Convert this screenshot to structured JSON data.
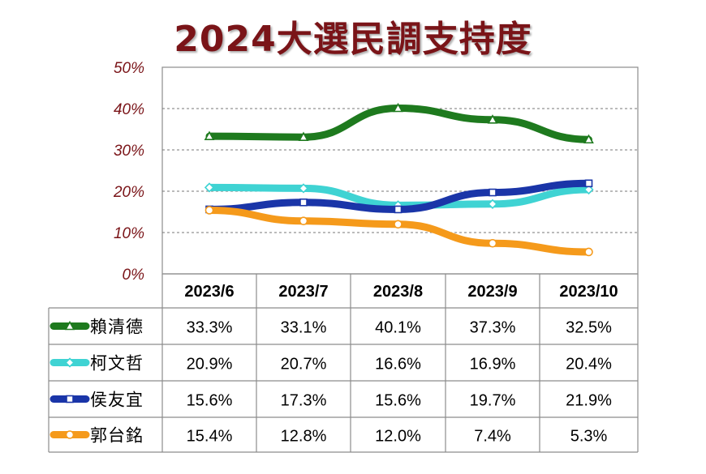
{
  "title": "2024大選民調支持度",
  "chart_data": {
    "type": "line",
    "title": "2024大選民調支持度",
    "categories": [
      "2023/6",
      "2023/7",
      "2023/8",
      "2023/9",
      "2023/10"
    ],
    "yticks": [
      "0%",
      "10%",
      "20%",
      "30%",
      "40%",
      "50%"
    ],
    "ylim": [
      0,
      50
    ],
    "grid": true,
    "series": [
      {
        "name": "賴清德",
        "color": "#1e7a1e",
        "marker": "triangle",
        "values": [
          33.3,
          33.1,
          40.1,
          37.3,
          32.5
        ],
        "labels": [
          "33.3%",
          "33.1%",
          "40.1%",
          "37.3%",
          "32.5%"
        ]
      },
      {
        "name": "柯文哲",
        "color": "#3fd3d3",
        "marker": "diamond",
        "values": [
          20.9,
          20.7,
          16.6,
          16.9,
          20.4
        ],
        "labels": [
          "20.9%",
          "20.7%",
          "16.6%",
          "16.9%",
          "20.4%"
        ]
      },
      {
        "name": "侯友宜",
        "color": "#1a35a8",
        "marker": "square",
        "values": [
          15.6,
          17.3,
          15.6,
          19.7,
          21.9
        ],
        "labels": [
          "15.6%",
          "17.3%",
          "15.6%",
          "19.7%",
          "21.9%"
        ]
      },
      {
        "name": "郭台銘",
        "color": "#f59a1b",
        "marker": "circle",
        "values": [
          15.4,
          12.8,
          12.0,
          7.4,
          5.3
        ],
        "labels": [
          "15.4%",
          "12.8%",
          "12.0%",
          "7.4%",
          "5.3%"
        ]
      }
    ]
  }
}
